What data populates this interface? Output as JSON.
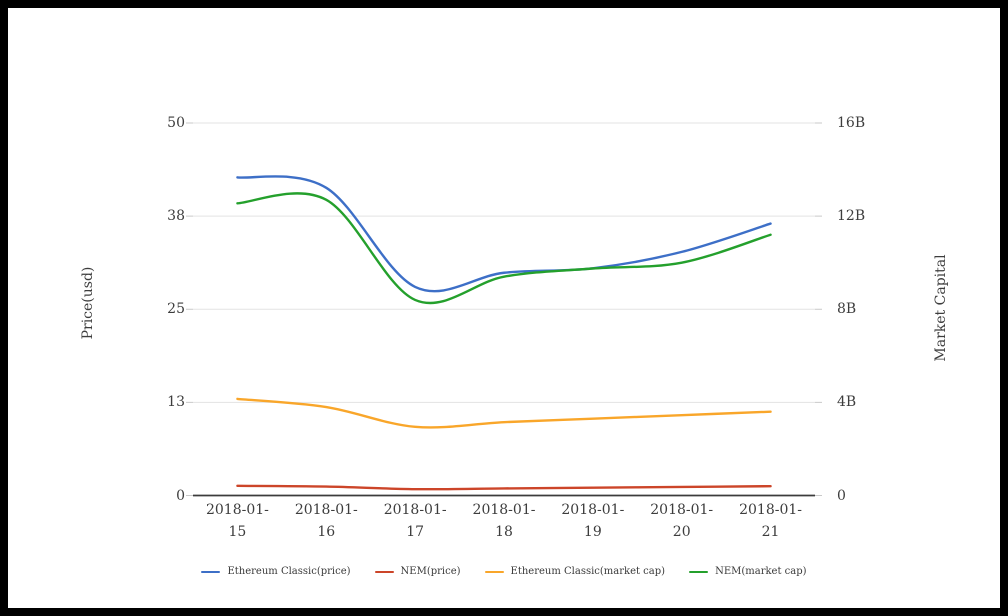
{
  "page": {
    "background": "#ffffff",
    "frame_color": "#000000",
    "text_color": "#3d3d3d",
    "grid_color": "#e3e3e3",
    "axisline_color": "#3c3c3c"
  },
  "chart_data": {
    "type": "line",
    "smooth": true,
    "grid": true,
    "legend_position": "bottom",
    "x": [
      "2018-01-15",
      "2018-01-16",
      "2018-01-17",
      "2018-01-18",
      "2018-01-19",
      "2018-01-20",
      "2018-01-21"
    ],
    "left_axis": {
      "title": "Price(usd)",
      "ticks": [
        "0",
        "13",
        "25",
        "38",
        "50"
      ],
      "min": 0,
      "max": 50
    },
    "right_axis": {
      "title": "Market Capital",
      "ticks": [
        "0",
        "4B",
        "8B",
        "12B",
        "16B"
      ],
      "min": 0,
      "max": 16000000000
    },
    "series": [
      {
        "name": "Ethereum Classic(price)",
        "axis": "left",
        "color": "#3d6fc7",
        "values": [
          42.7,
          41.3,
          28.0,
          29.9,
          30.5,
          32.7,
          36.5
        ]
      },
      {
        "name": "NEM(price)",
        "axis": "left",
        "color": "#cc4529",
        "values": [
          1.3,
          1.2,
          0.85,
          0.95,
          1.05,
          1.15,
          1.25
        ]
      },
      {
        "name": "Ethereum Classic(market cap)",
        "axis": "right",
        "color": "#f9a62a",
        "values": [
          4150000000,
          3800000000,
          2950000000,
          3150000000,
          3300000000,
          3450000000,
          3600000000
        ]
      },
      {
        "name": "NEM(market cap)",
        "axis": "right",
        "color": "#24a02c",
        "values": [
          12550000000,
          12700000000,
          8400000000,
          9400000000,
          9750000000,
          10000000000,
          11200000000
        ]
      }
    ]
  }
}
